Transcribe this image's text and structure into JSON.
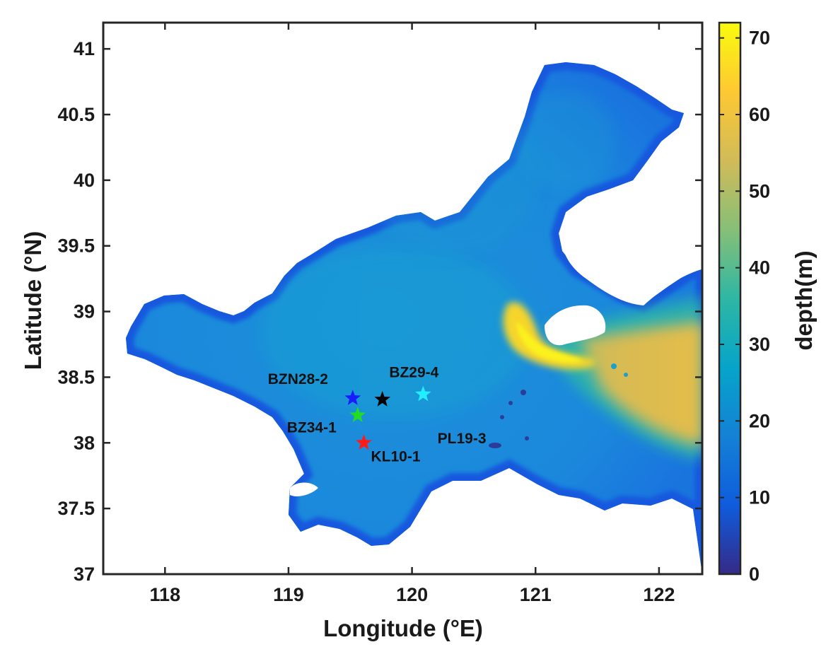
{
  "map": {
    "xlabel": "Longitude (°E)",
    "ylabel": "Latitude (°N)",
    "xlim": [
      117.5,
      122.35
    ],
    "ylim": [
      37.0,
      41.2
    ],
    "xticks": [
      118,
      119,
      120,
      121,
      122
    ],
    "yticks": [
      37,
      37.5,
      38,
      38.5,
      39,
      39.5,
      40,
      40.5,
      41
    ],
    "xtick_labels": [
      "118",
      "119",
      "120",
      "121",
      "122"
    ],
    "ytick_labels": [
      "37",
      "37.5",
      "38",
      "38.5",
      "39",
      "39.5",
      "40",
      "40.5",
      "41"
    ],
    "colorbar": {
      "label": "depth(m)",
      "range": [
        0,
        72
      ],
      "ticks": [
        0,
        10,
        20,
        30,
        40,
        50,
        60,
        70
      ],
      "tick_labels": [
        "0",
        "10",
        "20",
        "30",
        "40",
        "50",
        "60",
        "70"
      ],
      "colormap": "parula",
      "colors": [
        "#352a87",
        "#0f5cdd",
        "#1481d6",
        "#06a4ca",
        "#2eb7a4",
        "#87bf77",
        "#d1bb59",
        "#fec832",
        "#f9fb0e"
      ]
    },
    "stations": [
      {
        "name": "BZN28-2",
        "lon": 119.52,
        "lat": 38.34,
        "color": "#1a1aff"
      },
      {
        "name": "BZ34-1",
        "lon": 119.56,
        "lat": 38.21,
        "color": "#22dd22"
      },
      {
        "name": "KL10-1",
        "lon": 119.61,
        "lat": 38.0,
        "color": "#ff1a1a"
      },
      {
        "name": "PL19-3",
        "lon": 119.76,
        "lat": 38.33,
        "color": "#000000"
      },
      {
        "name": "BZ29-4",
        "lon": 120.09,
        "lat": 38.37,
        "color": "#22eeff"
      }
    ]
  }
}
